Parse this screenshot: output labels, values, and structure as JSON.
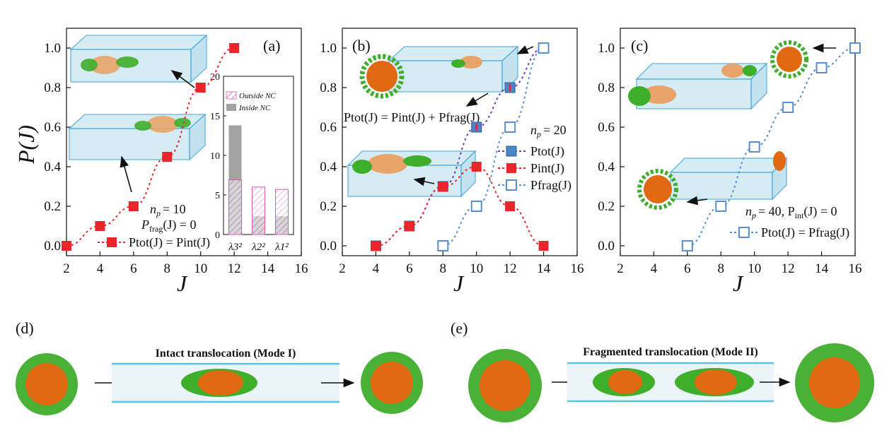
{
  "colors": {
    "red": "#e8262b",
    "blue_face": "#4a86c6",
    "blue_open": "#5a8fcf",
    "purple": "#6a3fb0",
    "pink_hatch": "#d45ab8",
    "gray_bar": "#a3a3a3",
    "tube_fill": "#cfe9f4",
    "tube_edge": "#4aa7d8",
    "green": "#3fae2b",
    "orange": "#e06a12"
  },
  "chart_data": [
    {
      "panel": "(a)",
      "type": "scatter",
      "xlabel": "J",
      "ylabel": "P(J)",
      "xlim": [
        2,
        16
      ],
      "ylim": [
        -0.05,
        1.1
      ],
      "xticks": [
        "2",
        "4",
        "6",
        "8",
        "10",
        "12",
        "14",
        "16"
      ],
      "yticks": [
        "0.0",
        "0.2",
        "0.4",
        "0.6",
        "0.8",
        "1.0"
      ],
      "series": [
        {
          "x": [
            2,
            4,
            6,
            8,
            10,
            12
          ],
          "y": [
            0.0,
            0.1,
            0.2,
            0.45,
            0.8,
            1.0
          ],
          "style": "filled-red"
        }
      ],
      "annot_np": "n",
      "annot_np_sub": "p",
      "annot_np_val": "= 10",
      "annot_frag": "P",
      "annot_frag_sub": "frag",
      "annot_frag_val": "(J) = 0",
      "legend_label": "Ptot(J) = Pint(J)",
      "inset": {
        "type": "bar",
        "categories": [
          "λ3²",
          "λ2²",
          "λ1²"
        ],
        "ylim": [
          0,
          20
        ],
        "yticks": [
          "0",
          "5",
          "10",
          "15",
          "20"
        ],
        "series": [
          {
            "name": "Outside NC",
            "values": [
              6.9,
              6.0,
              5.7
            ]
          },
          {
            "name": "Inside NC",
            "values": [
              13.8,
              2.3,
              2.3
            ]
          }
        ]
      }
    },
    {
      "panel": "(b)",
      "type": "scatter",
      "xlabel": "J",
      "xlim": [
        2,
        16
      ],
      "ylim": [
        -0.05,
        1.1
      ],
      "xticks": [
        "2",
        "4",
        "6",
        "8",
        "10",
        "12",
        "14",
        "16"
      ],
      "yticks": [
        "0.0",
        "0.2",
        "0.4",
        "0.6",
        "0.8",
        "1.0"
      ],
      "series": [
        {
          "name": "Ptot(J)",
          "x": [
            4,
            6,
            8,
            10,
            12,
            14
          ],
          "y": [
            0.0,
            0.1,
            0.3,
            0.6,
            0.8,
            1.0
          ],
          "style": "filled-blue"
        },
        {
          "name": "Pint(J)",
          "x": [
            4,
            6,
            8,
            10,
            12,
            14
          ],
          "y": [
            0.0,
            0.1,
            0.3,
            0.4,
            0.2,
            0.0
          ],
          "style": "filled-red"
        },
        {
          "name": "Pfrag(J)",
          "x": [
            8,
            10,
            12,
            14
          ],
          "y": [
            0.0,
            0.2,
            0.6,
            1.0
          ],
          "style": "open-blue"
        }
      ],
      "annot_np": "n",
      "annot_np_sub": "p",
      "annot_np_val": "= 20",
      "eq_label": "Ptot(J) = Pint(J) + Pfrag(J)"
    },
    {
      "panel": "(c)",
      "type": "scatter",
      "xlabel": "J",
      "xlim": [
        2,
        16
      ],
      "ylim": [
        -0.05,
        1.1
      ],
      "xticks": [
        "2",
        "4",
        "6",
        "8",
        "10",
        "12",
        "14",
        "16"
      ],
      "yticks": [
        "0.0",
        "0.2",
        "0.4",
        "0.6",
        "0.8",
        "1.0"
      ],
      "series": [
        {
          "x": [
            6,
            8,
            10,
            12,
            14,
            16
          ],
          "y": [
            0.0,
            0.2,
            0.5,
            0.7,
            0.9,
            1.0
          ],
          "style": "open-blue"
        }
      ],
      "annot_np": "n",
      "annot_np_sub": "p",
      "annot_np_val": "= 40, P",
      "annot_int_sub": "int",
      "annot_int_val": "(J) = 0",
      "legend_label": "Ptot(J) = Pfrag(J)"
    }
  ],
  "panel_d": {
    "letter": "(d)",
    "title": "Intact translocation (Mode I)"
  },
  "panel_e": {
    "letter": "(e)",
    "title": "Fragmented translocation (Mode II)"
  }
}
